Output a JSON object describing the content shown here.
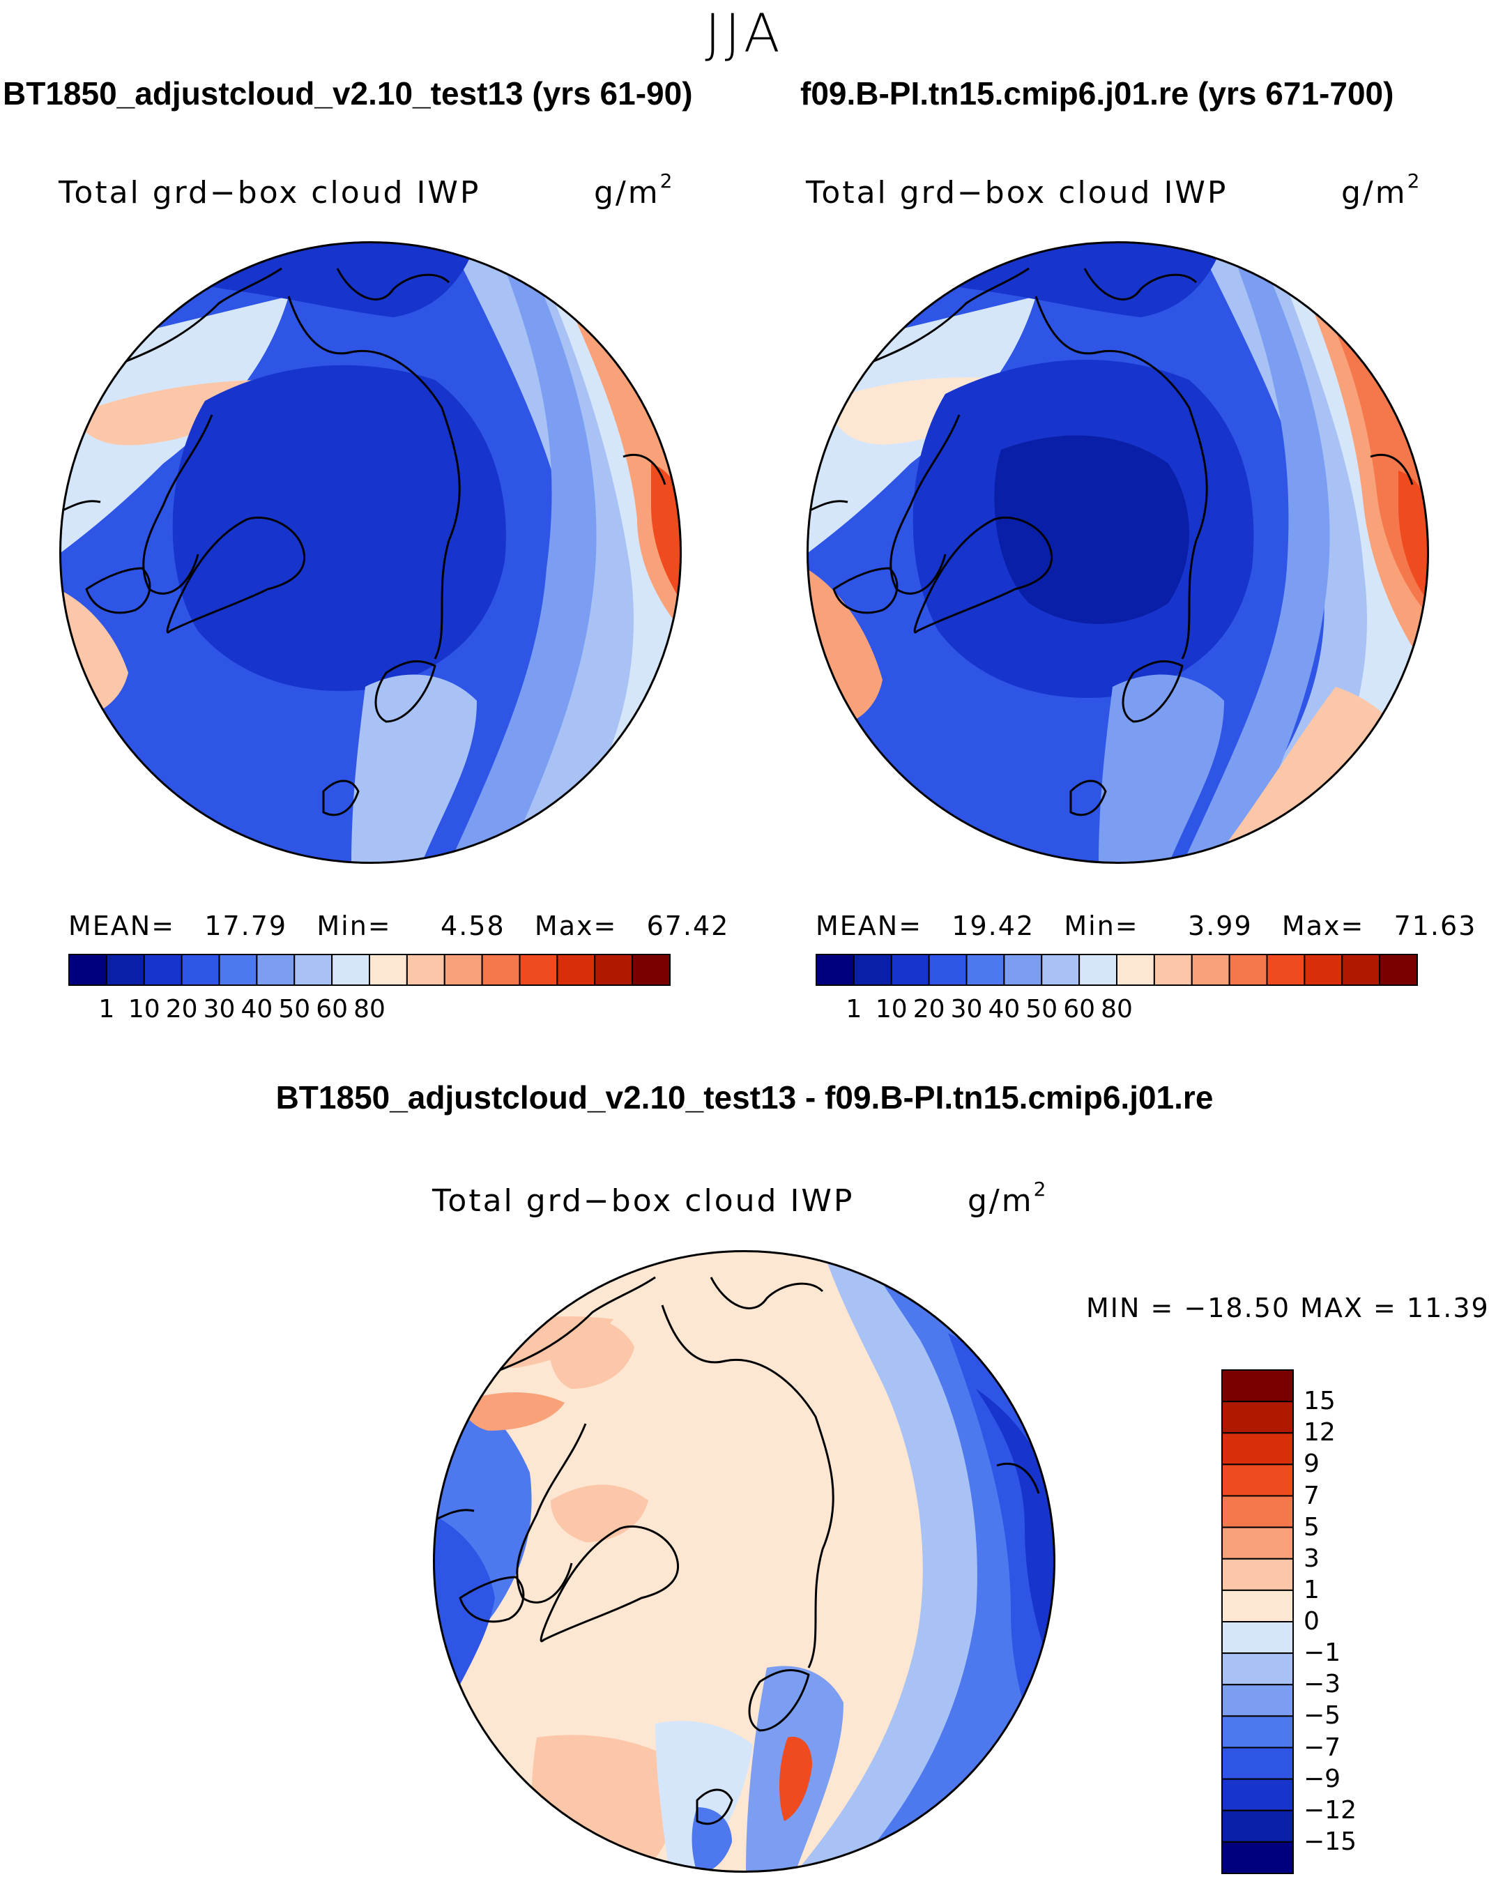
{
  "season": "JJA",
  "panels": [
    {
      "case_title": "BT1850_adjustcloud_v2.10_test13 (yrs 61-90)",
      "field": "Total grd−box cloud IWP",
      "units": "g/m",
      "units_exp": "2",
      "mean_label": "MEAN=",
      "mean": "17.79",
      "min_label": "Min=",
      "min": "4.58",
      "max_label": "Max=",
      "max": "67.42"
    },
    {
      "case_title": "f09.B-PI.tn15.cmip6.j01.re (yrs 671-700)",
      "field": "Total grd−box cloud IWP",
      "units": "g/m",
      "units_exp": "2",
      "mean_label": "MEAN=",
      "mean": "19.42",
      "min_label": "Min=",
      "min": "3.99",
      "max_label": "Max=",
      "max": "71.63"
    }
  ],
  "diff_panel": {
    "title": "BT1850_adjustcloud_v2.10_test13 - f09.B-PI.tn15.cmip6.j01.re",
    "field": "Total grd−box cloud IWP",
    "units": "g/m",
    "units_exp": "2",
    "minmax": "MIN = −18.50 MAX =  11.39"
  },
  "colorbar_main": {
    "colors": [
      "#00007f",
      "#0a1fa8",
      "#1735cc",
      "#2e55e6",
      "#4d78ee",
      "#7b9ef2",
      "#a8c2f5",
      "#d6e6fa",
      "#fde6d2",
      "#fcc7a8",
      "#f9a27a",
      "#f5784d",
      "#f04a1f",
      "#d92e0a",
      "#b01800",
      "#7a0000"
    ],
    "labels": [
      "1",
      "10",
      "20",
      "30",
      "40",
      "50",
      "60",
      "80"
    ]
  },
  "colorbar_diff": {
    "colors": [
      "#7a0000",
      "#b01800",
      "#d92e0a",
      "#f04a1f",
      "#f5784d",
      "#f9a27a",
      "#fcc7a8",
      "#fde6d2",
      "#d6e6fa",
      "#a8c2f5",
      "#7b9ef2",
      "#4d78ee",
      "#2e55e6",
      "#1735cc",
      "#0a1fa8",
      "#00007f"
    ],
    "labels": [
      "15",
      "12",
      "9",
      "7",
      "5",
      "3",
      "1",
      "0",
      "−1",
      "−3",
      "−5",
      "−7",
      "−9",
      "−12",
      "−15"
    ]
  }
}
